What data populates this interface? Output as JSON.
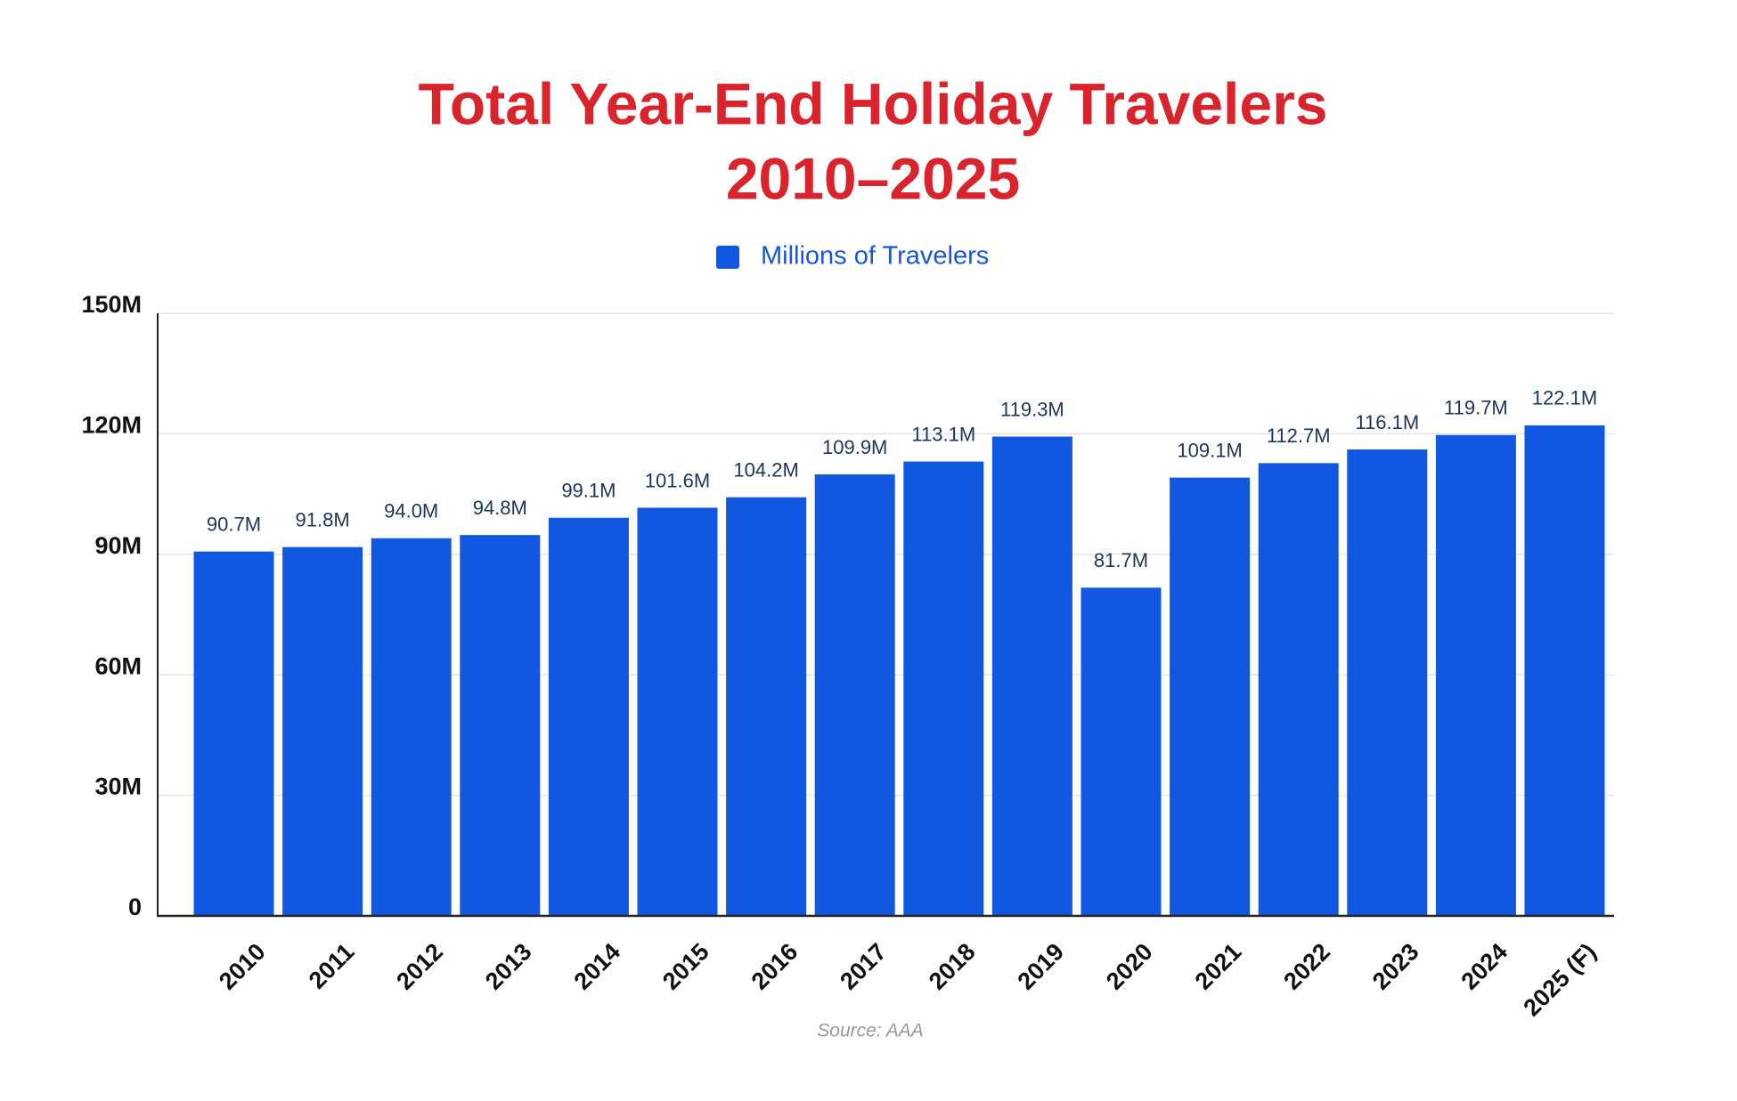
{
  "chart_data": {
    "type": "bar",
    "title": [
      "Total Year-End Holiday Travelers",
      "2010–2025"
    ],
    "categories": [
      "2010",
      "2011",
      "2012",
      "2013",
      "2014",
      "2015",
      "2016",
      "2017",
      "2018",
      "2019",
      "2020",
      "2021",
      "2022",
      "2023",
      "2024",
      "2025 (F)"
    ],
    "series": [
      {
        "name": "Millions of Travelers",
        "color": "#1257e0",
        "values": [
          90.7,
          91.8,
          94.0,
          94.8,
          99.1,
          101.6,
          104.2,
          109.9,
          113.1,
          119.3,
          81.7,
          109.1,
          112.7,
          116.1,
          119.7,
          122.1
        ],
        "value_labels": [
          "90.7M",
          "91.8M",
          "94.0M",
          "94.8M",
          "99.1M",
          "101.6M",
          "104.2M",
          "109.9M",
          "113.1M",
          "119.3M",
          "81.7M",
          "109.1M",
          "112.7M",
          "116.1M",
          "119.7M",
          "122.1M"
        ]
      }
    ],
    "ylim": [
      0,
      150
    ],
    "yticks": [
      0,
      {
        "value": 30,
        "label": "30M"
      },
      {
        "value": 60,
        "label": "60M"
      },
      {
        "value": 90,
        "label": "90M"
      },
      {
        "value": 120,
        "label": "120M"
      },
      {
        "value": 150,
        "label": "150M"
      }
    ],
    "grid": true,
    "legend": "top",
    "source": "Source: AAA"
  }
}
